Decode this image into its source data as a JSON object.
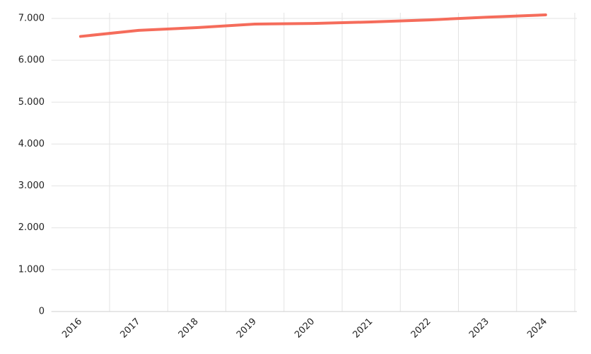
{
  "chart_data": {
    "type": "line",
    "categories": [
      "2016",
      "2017",
      "2018",
      "2019",
      "2020",
      "2021",
      "2022",
      "2023",
      "2024"
    ],
    "series": [
      {
        "color": "#f56c5b",
        "values": [
          6570,
          6715,
          6780,
          6865,
          6880,
          6915,
          6965,
          7030,
          7085
        ]
      }
    ],
    "ylim": [
      0,
      7000
    ],
    "yticks": [
      0,
      {
        "value": 1000,
        "label": "1.000"
      },
      {
        "value": 2000,
        "label": "2.000"
      },
      {
        "value": 3000,
        "label": "3.000"
      },
      {
        "value": 4000,
        "label": "4.000"
      },
      {
        "value": 5000,
        "label": "5.000"
      },
      {
        "value": 6000,
        "label": "6.000"
      },
      {
        "value": 7000,
        "label": "7.000"
      }
    ],
    "grid": true
  }
}
